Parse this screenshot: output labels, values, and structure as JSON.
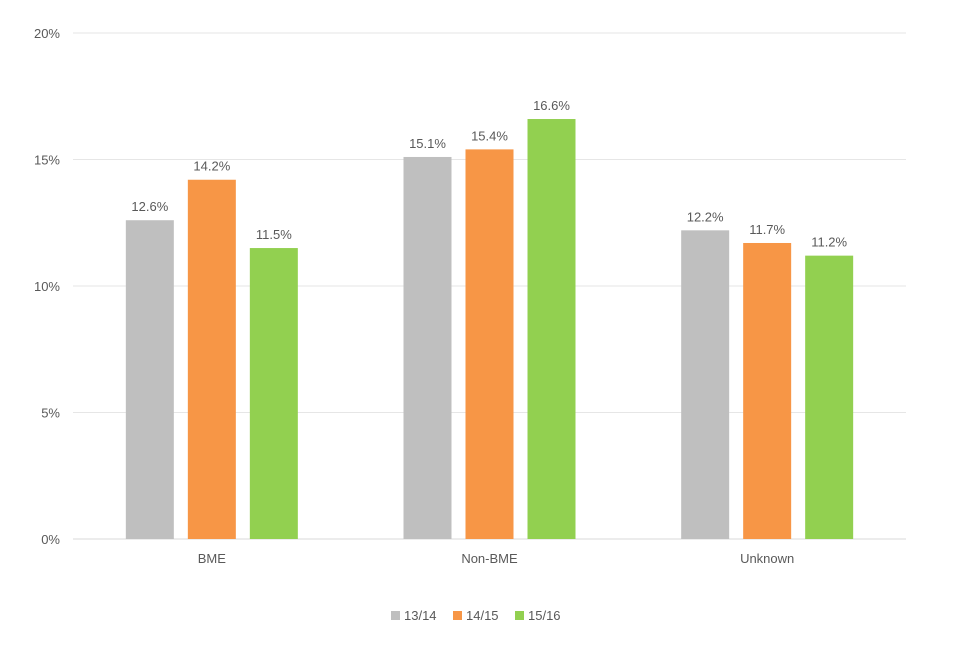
{
  "chart_data": {
    "type": "bar",
    "title": "",
    "xlabel": "",
    "ylabel": "",
    "categories": [
      "BME",
      "Non-BME",
      "Unknown"
    ],
    "series": [
      {
        "name": "13/14",
        "values": [
          12.6,
          15.1,
          12.2
        ],
        "labels": [
          "12.6%",
          "15.1%",
          "12.2%"
        ],
        "color": "#bfbfbf"
      },
      {
        "name": "14/15",
        "values": [
          14.2,
          15.4,
          11.7
        ],
        "labels": [
          "14.2%",
          "15.4%",
          "11.7%"
        ],
        "color": "#f79646"
      },
      {
        "name": "15/16",
        "values": [
          11.5,
          16.6,
          11.2
        ],
        "labels": [
          "11.5%",
          "16.6%",
          "11.2%"
        ],
        "color": "#92d050"
      }
    ],
    "ylim": [
      0,
      20
    ],
    "yticks": [
      0,
      5,
      10,
      15,
      20
    ],
    "ytick_labels": [
      "0%",
      "5%",
      "10%",
      "15%",
      "20%"
    ],
    "grid": true,
    "legend_position": "bottom"
  }
}
